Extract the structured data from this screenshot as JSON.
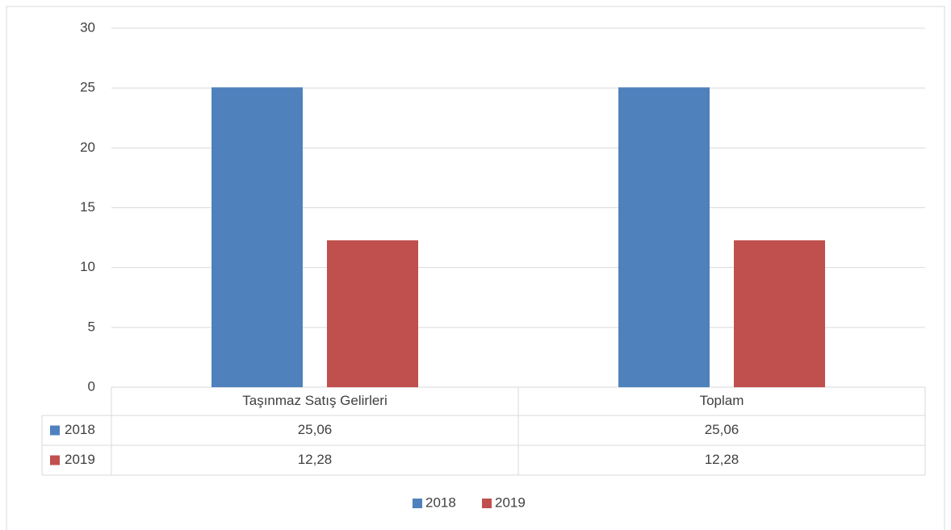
{
  "chart_data": {
    "type": "bar",
    "categories": [
      "Taşınmaz Satış Gelirleri",
      "Toplam"
    ],
    "series": [
      {
        "name": "2018",
        "color": "#4f81bd",
        "values": [
          25.06,
          25.06
        ],
        "value_labels": [
          "25,06",
          "25,06"
        ]
      },
      {
        "name": "2019",
        "color": "#c0504d",
        "values": [
          12.28,
          12.28
        ],
        "value_labels": [
          "12,28",
          "12,28"
        ]
      }
    ],
    "ylim": [
      0,
      30
    ],
    "yticks": [
      0,
      5,
      10,
      15,
      20,
      25,
      30
    ],
    "grid": true,
    "legend": "bottom"
  }
}
